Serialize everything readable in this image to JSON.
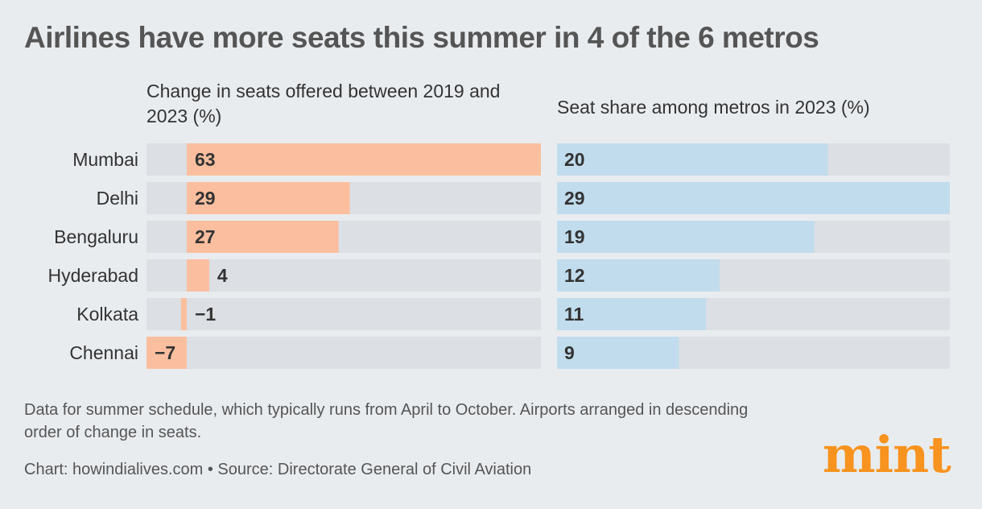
{
  "title": "Airlines have more seats this summer in 4 of the 6 metros",
  "colors": {
    "background": "#e9ecef",
    "track": "#dcdfe3",
    "change_bar": "#fbbf9f",
    "share_bar": "#c1dced",
    "brand": "#f7931e"
  },
  "chart_data": [
    {
      "type": "bar",
      "orientation": "horizontal",
      "title": "Change in seats offered between 2019 and 2023 (%)",
      "categories": [
        "Mumbai",
        "Delhi",
        "Bengaluru",
        "Hyderabad",
        "Kolkata",
        "Chennai"
      ],
      "values": [
        63,
        29,
        27,
        4,
        -1,
        -7
      ],
      "labels": [
        "63",
        "29",
        "27",
        "4",
        "−1",
        "−7"
      ],
      "xlim": [
        -7,
        63
      ]
    },
    {
      "type": "bar",
      "orientation": "horizontal",
      "title": "Seat share among metros in 2023 (%)",
      "categories": [
        "Mumbai",
        "Delhi",
        "Bengaluru",
        "Hyderabad",
        "Kolkata",
        "Chennai"
      ],
      "values": [
        20,
        29,
        19,
        12,
        11,
        9
      ],
      "labels": [
        "20",
        "29",
        "19",
        "12",
        "11",
        "9"
      ],
      "xlim": [
        0,
        29
      ]
    }
  ],
  "footnote": "Data for summer schedule, which typically runs from April to October. Airports arranged in descending order of change in seats.",
  "credit": "Chart: howindialives.com • Source: Directorate General of Civil Aviation",
  "logo": "mint"
}
